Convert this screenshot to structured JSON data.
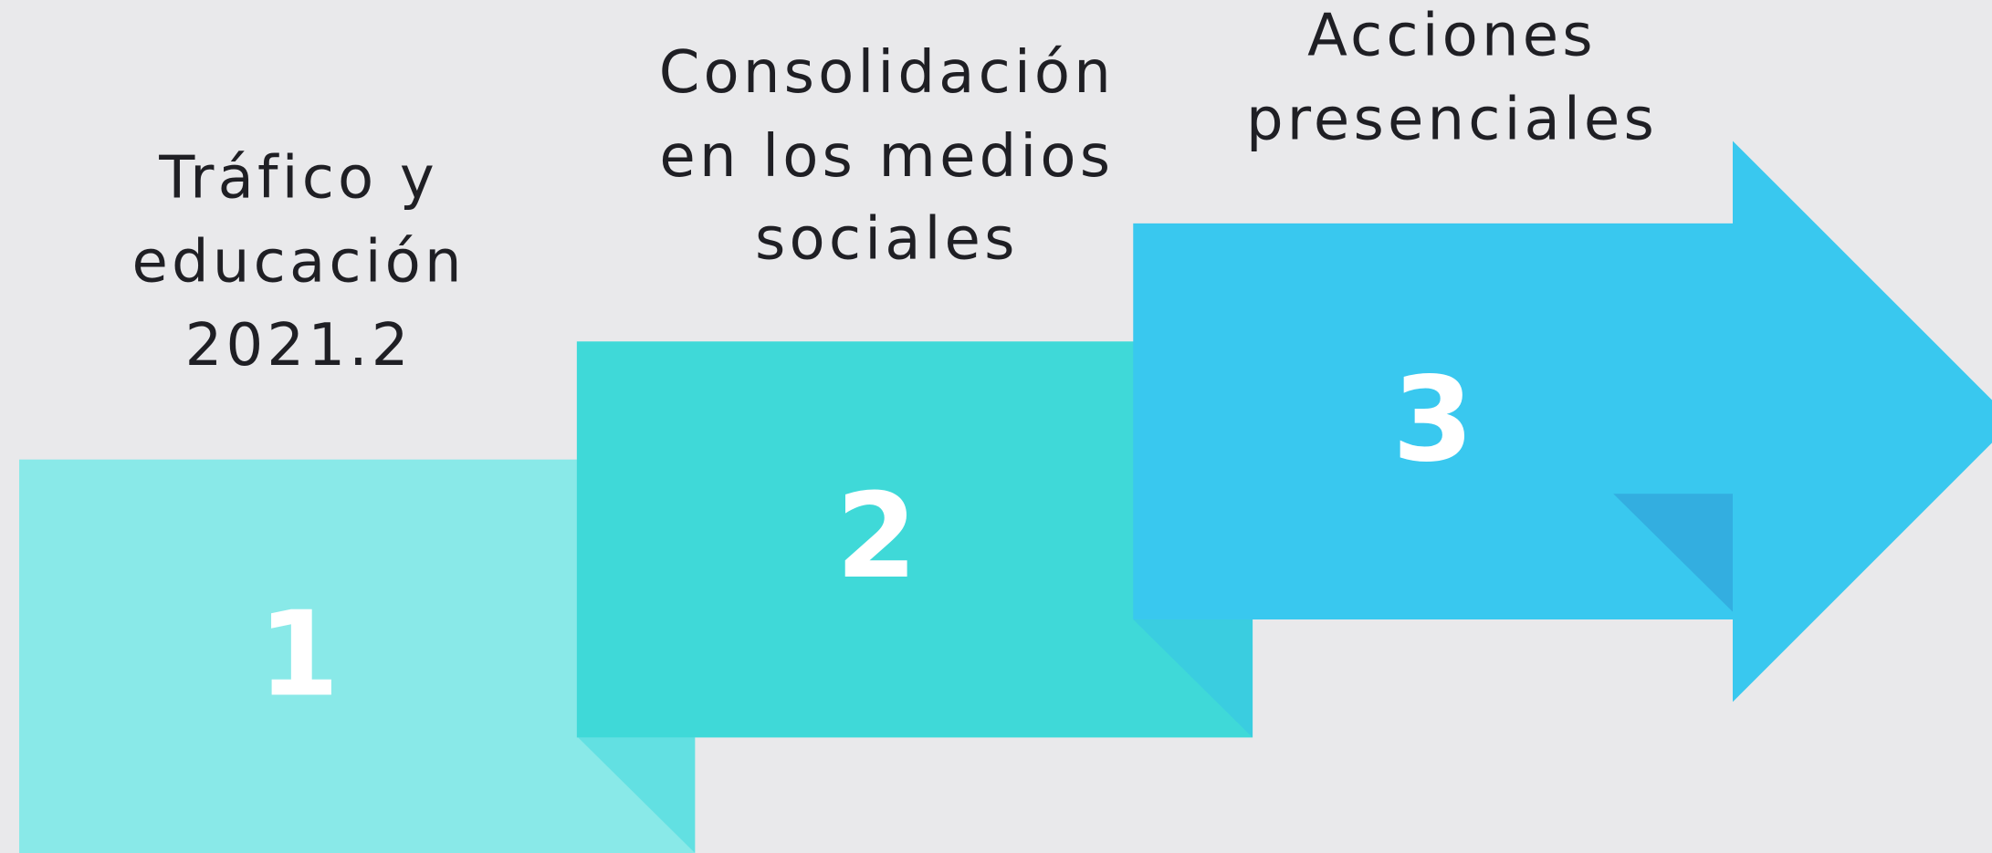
{
  "steps": [
    {
      "number": "1",
      "label": [
        "Tráfico y",
        "educación",
        "2021.2"
      ]
    },
    {
      "number": "2",
      "label": [
        "Consolidación",
        "en los medios",
        "sociales"
      ]
    },
    {
      "number": "3",
      "label": [
        "Acciones",
        "presenciales"
      ]
    }
  ]
}
